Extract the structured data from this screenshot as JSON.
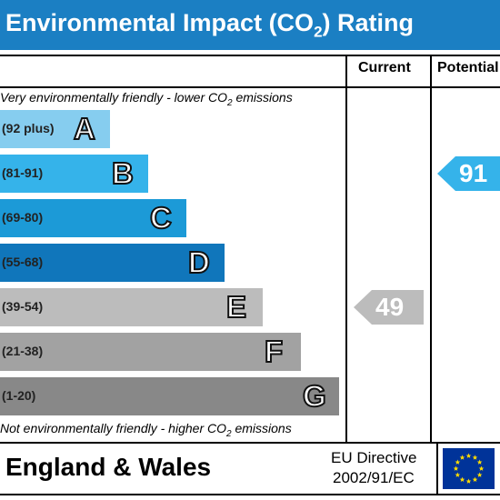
{
  "header": {
    "title_prefix": "Environmental Impact (CO",
    "title_sub": "2",
    "title_suffix": ") Rating"
  },
  "columns": {
    "current": "Current",
    "potential": "Potential"
  },
  "notes": {
    "top_prefix": "Very environmentally friendly - lower CO",
    "top_sub": "2",
    "top_suffix": " emissions",
    "bottom_prefix": "Not environmentally friendly - higher CO",
    "bottom_sub": "2",
    "bottom_suffix": " emissions"
  },
  "chart_data": {
    "type": "bar",
    "title": "Environmental Impact (CO2) Rating",
    "bands": [
      {
        "letter": "A",
        "range": "(92 plus)",
        "color": "#86cdef"
      },
      {
        "letter": "B",
        "range": "(81-91)",
        "color": "#35b3ea"
      },
      {
        "letter": "C",
        "range": "(69-80)",
        "color": "#1c9ad7"
      },
      {
        "letter": "D",
        "range": "(55-68)",
        "color": "#1076bb"
      },
      {
        "letter": "E",
        "range": "(39-54)",
        "color": "#bcbcbc"
      },
      {
        "letter": "F",
        "range": "(21-38)",
        "color": "#a2a2a2"
      },
      {
        "letter": "G",
        "range": "(1-20)",
        "color": "#888888"
      }
    ],
    "current": {
      "value": 49,
      "band": "E",
      "color": "#bcbcbc"
    },
    "potential": {
      "value": 91,
      "band": "B",
      "color": "#35b3ea"
    }
  },
  "footer": {
    "region": "England & Wales",
    "directive_line1": "EU Directive",
    "directive_line2": "2002/91/EC"
  },
  "colors": {
    "header": "#1b7fc3",
    "flag": "#003399",
    "stars": "#ffdd00"
  }
}
